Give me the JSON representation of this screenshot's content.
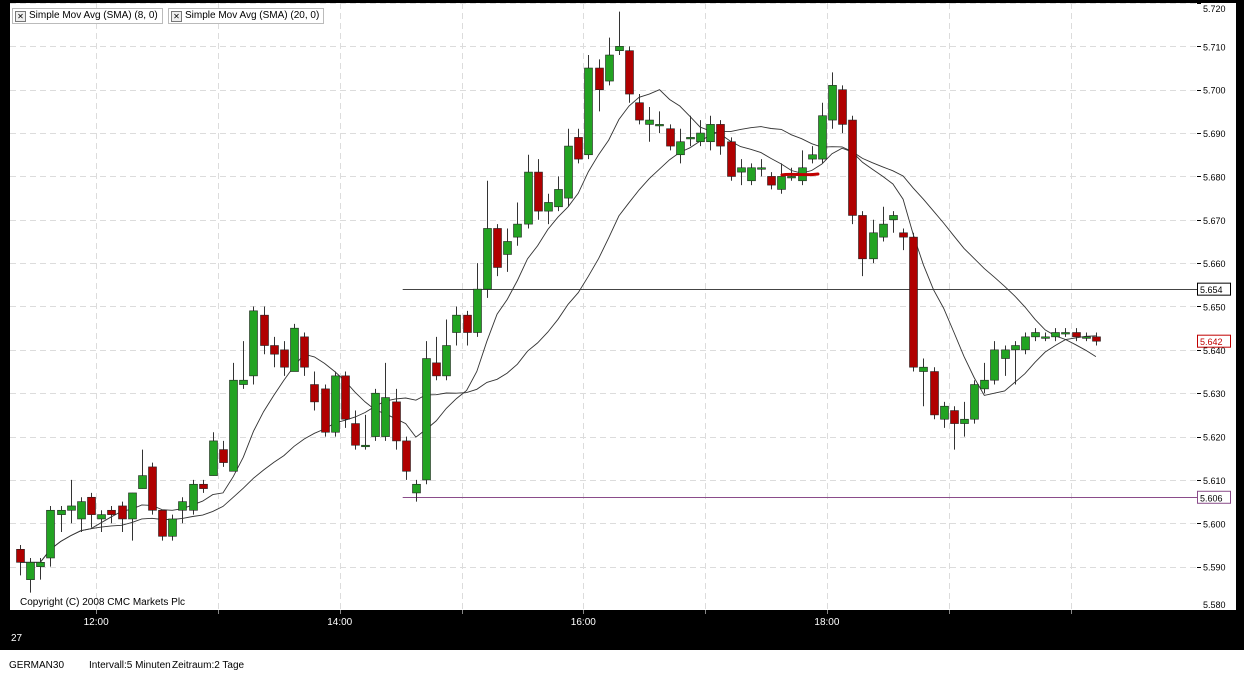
{
  "legend": [
    {
      "label": "Simple Mov Avg (SMA) (8, 0)",
      "icon": "close-box-icon"
    },
    {
      "label": "Simple Mov Avg (SMA) (20, 0)",
      "icon": "close-box-icon"
    }
  ],
  "copyright": "Copyright (C) 2008 CMC Markets Plc",
  "corner_label": "27",
  "status": {
    "symbol": "GERMAN30",
    "interval": "Intervall:5 Minuten",
    "range": "Zeitraum:2 Tage"
  },
  "colors": {
    "up": "#22a322",
    "down": "#b00000",
    "wick": "#333333",
    "hline_black": "#444444",
    "hline_purple": "#8a4c8a",
    "current_tag": "#c00000"
  },
  "chart_data": {
    "type": "candlestick",
    "instrument": "GERMAN30",
    "ylim": [
      5.58,
      5.72
    ],
    "y_ticks": [
      "5.580",
      "5.590",
      "5.600",
      "5.610",
      "5.620",
      "5.630",
      "5.640",
      "5.650",
      "5.660",
      "5.670",
      "5.680",
      "5.690",
      "5.700",
      "5.710",
      "5.720"
    ],
    "x_ticks": [
      {
        "label": "12:00",
        "index": 7.5
      },
      {
        "label": "14:00",
        "index": 31.5
      },
      {
        "label": "16:00",
        "index": 55.5
      },
      {
        "label": "18:00",
        "index": 79.5
      }
    ],
    "grid": true,
    "horizontal_lines": [
      {
        "value": 5.654,
        "label": "5.654",
        "style": "black",
        "from_index": 38
      },
      {
        "value": 5.606,
        "label": "5.606",
        "style": "purple",
        "from_index": 38
      }
    ],
    "current_price": "5.642",
    "series": [
      {
        "name": "Simple Mov Avg (SMA) (8, 0)",
        "period": 8
      },
      {
        "name": "Simple Mov Avg (SMA) (20, 0)",
        "period": 20
      }
    ],
    "candles": [
      [
        5.594,
        5.591,
        5.595,
        5.588
      ],
      [
        5.587,
        5.591,
        5.592,
        5.584
      ],
      [
        5.59,
        5.591,
        5.592,
        5.587
      ],
      [
        5.592,
        5.603,
        5.604,
        5.59
      ],
      [
        5.602,
        5.603,
        5.604,
        5.598
      ],
      [
        5.603,
        5.604,
        5.61,
        5.6
      ],
      [
        5.601,
        5.605,
        5.606,
        5.598
      ],
      [
        5.606,
        5.602,
        5.607,
        5.599
      ],
      [
        5.601,
        5.602,
        5.603,
        5.598
      ],
      [
        5.603,
        5.602,
        5.604,
        5.6
      ],
      [
        5.604,
        5.601,
        5.605,
        5.598
      ],
      [
        5.601,
        5.607,
        5.607,
        5.596
      ],
      [
        5.608,
        5.611,
        5.617,
        5.608
      ],
      [
        5.613,
        5.603,
        5.614,
        5.602
      ],
      [
        5.603,
        5.597,
        5.603,
        5.596
      ],
      [
        5.597,
        5.601,
        5.602,
        5.596
      ],
      [
        5.603,
        5.605,
        5.606,
        5.6
      ],
      [
        5.603,
        5.609,
        5.61,
        5.602
      ],
      [
        5.609,
        5.608,
        5.61,
        5.607
      ],
      [
        5.611,
        5.619,
        5.621,
        5.611
      ],
      [
        5.617,
        5.614,
        5.619,
        5.613
      ],
      [
        5.612,
        5.633,
        5.637,
        5.612
      ],
      [
        5.632,
        5.633,
        5.642,
        5.631
      ],
      [
        5.634,
        5.649,
        5.65,
        5.632
      ],
      [
        5.648,
        5.641,
        5.65,
        5.639
      ],
      [
        5.641,
        5.639,
        5.643,
        5.636
      ],
      [
        5.64,
        5.636,
        5.642,
        5.634
      ],
      [
        5.635,
        5.645,
        5.646,
        5.636
      ],
      [
        5.643,
        5.636,
        5.644,
        5.634
      ],
      [
        5.632,
        5.628,
        5.635,
        5.626
      ],
      [
        5.631,
        5.621,
        5.632,
        5.62
      ],
      [
        5.621,
        5.634,
        5.635,
        5.62
      ],
      [
        5.634,
        5.624,
        5.635,
        5.622
      ],
      [
        5.623,
        5.618,
        5.626,
        5.617
      ],
      [
        5.618,
        5.618,
        5.625,
        5.617
      ],
      [
        5.62,
        5.63,
        5.631,
        5.619
      ],
      [
        5.62,
        5.629,
        5.637,
        5.619
      ],
      [
        5.628,
        5.619,
        5.631,
        5.617
      ],
      [
        5.619,
        5.612,
        5.62,
        5.61
      ],
      [
        5.607,
        5.609,
        5.61,
        5.605
      ],
      [
        5.61,
        5.638,
        5.642,
        5.609
      ],
      [
        5.637,
        5.634,
        5.643,
        5.633
      ],
      [
        5.634,
        5.641,
        5.647,
        5.633
      ],
      [
        5.644,
        5.648,
        5.65,
        5.641
      ],
      [
        5.648,
        5.644,
        5.649,
        5.641
      ],
      [
        5.644,
        5.654,
        5.66,
        5.643
      ],
      [
        5.654,
        5.668,
        5.679,
        5.652
      ],
      [
        5.668,
        5.659,
        5.669,
        5.657
      ],
      [
        5.662,
        5.665,
        5.668,
        5.658
      ],
      [
        5.666,
        5.669,
        5.674,
        5.664
      ],
      [
        5.669,
        5.681,
        5.685,
        5.668
      ],
      [
        5.681,
        5.672,
        5.684,
        5.67
      ],
      [
        5.672,
        5.674,
        5.676,
        5.669
      ],
      [
        5.673,
        5.677,
        5.68,
        5.672
      ],
      [
        5.675,
        5.687,
        5.691,
        5.673
      ],
      [
        5.689,
        5.684,
        5.691,
        5.683
      ],
      [
        5.685,
        5.705,
        5.708,
        5.684
      ],
      [
        5.705,
        5.7,
        5.707,
        5.695
      ],
      [
        5.702,
        5.708,
        5.712,
        5.701
      ],
      [
        5.709,
        5.71,
        5.718,
        5.708
      ],
      [
        5.709,
        5.699,
        5.71,
        5.697
      ],
      [
        5.697,
        5.693,
        5.699,
        5.692
      ],
      [
        5.692,
        5.693,
        5.696,
        5.688
      ],
      [
        5.692,
        5.692,
        5.695,
        5.69
      ],
      [
        5.691,
        5.687,
        5.692,
        5.686
      ],
      [
        5.685,
        5.688,
        5.691,
        5.683
      ],
      [
        5.689,
        5.689,
        5.694,
        5.687
      ],
      [
        5.688,
        5.69,
        5.693,
        5.687
      ],
      [
        5.688,
        5.692,
        5.694,
        5.686
      ],
      [
        5.692,
        5.687,
        5.693,
        5.685
      ],
      [
        5.688,
        5.68,
        5.689,
        5.679
      ],
      [
        5.681,
        5.682,
        5.684,
        5.678
      ],
      [
        5.679,
        5.682,
        5.683,
        5.678
      ],
      [
        5.682,
        5.682,
        5.684,
        5.68
      ],
      [
        5.68,
        5.678,
        5.681,
        5.677
      ],
      [
        5.677,
        5.68,
        5.683,
        5.676
      ],
      [
        5.68,
        5.68,
        5.682,
        5.679
      ],
      [
        5.679,
        5.682,
        5.686,
        5.678
      ],
      [
        5.684,
        5.685,
        5.687,
        5.683
      ],
      [
        5.684,
        5.694,
        5.697,
        5.683
      ],
      [
        5.693,
        5.701,
        5.704,
        5.691
      ],
      [
        5.7,
        5.692,
        5.701,
        5.69
      ],
      [
        5.693,
        5.671,
        5.694,
        5.669
      ],
      [
        5.671,
        5.661,
        5.672,
        5.657
      ],
      [
        5.661,
        5.667,
        5.67,
        5.66
      ],
      [
        5.666,
        5.669,
        5.673,
        5.665
      ],
      [
        5.67,
        5.671,
        5.672,
        5.667
      ],
      [
        5.667,
        5.666,
        5.668,
        5.663
      ],
      [
        5.666,
        5.636,
        5.667,
        5.635
      ],
      [
        5.635,
        5.636,
        5.638,
        5.627
      ],
      [
        5.635,
        5.625,
        5.636,
        5.624
      ],
      [
        5.624,
        5.627,
        5.628,
        5.622
      ],
      [
        5.626,
        5.623,
        5.627,
        5.617
      ],
      [
        5.623,
        5.624,
        5.628,
        5.62
      ],
      [
        5.624,
        5.632,
        5.633,
        5.623
      ],
      [
        5.631,
        5.633,
        5.637,
        5.63
      ],
      [
        5.633,
        5.64,
        5.642,
        5.632
      ],
      [
        5.638,
        5.64,
        5.641,
        5.634
      ],
      [
        5.64,
        5.641,
        5.642,
        5.632
      ],
      [
        5.64,
        5.643,
        5.644,
        5.639
      ],
      [
        5.643,
        5.644,
        5.645,
        5.642
      ],
      [
        5.643,
        5.643,
        5.644,
        5.642
      ],
      [
        5.643,
        5.644,
        5.645,
        5.642
      ],
      [
        5.644,
        5.644,
        5.645,
        5.643
      ],
      [
        5.644,
        5.643,
        5.645,
        5.642
      ],
      [
        5.643,
        5.643,
        5.644,
        5.642
      ],
      [
        5.643,
        5.642,
        5.644,
        5.641
      ]
    ],
    "candle_fields": [
      "open",
      "close",
      "high",
      "low"
    ]
  }
}
